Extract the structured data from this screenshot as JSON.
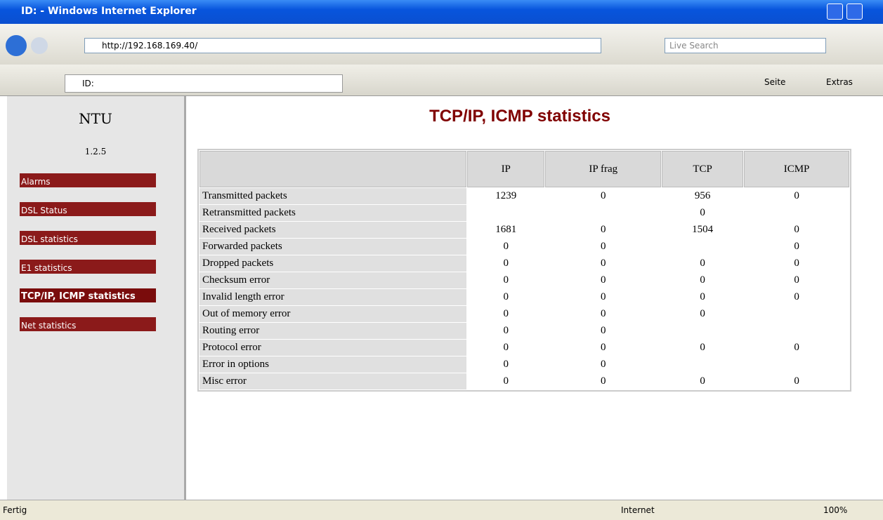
{
  "window": {
    "title": "ID: - Windows Internet Explorer"
  },
  "toolbar": {
    "url": "http://192.168.169.40/",
    "search": "Live Search",
    "tab": "ID:",
    "page": "Seite",
    "extras": "Extras"
  },
  "sidebar": {
    "title": "NTU",
    "version": "1.2.5",
    "nav": [
      "Alarms",
      "DSL Status",
      "DSL statistics",
      "E1 statistics",
      "TCP/IP, ICMP statistics",
      "Net statistics"
    ],
    "active": 4
  },
  "main": {
    "title": "TCP/IP, ICMP statistics"
  },
  "table": {
    "headers": [
      "IP",
      "IP frag",
      "TCP",
      "ICMP"
    ],
    "rows": [
      {
        "label": "Transmitted packets",
        "cells": [
          1239,
          0,
          956,
          0
        ]
      },
      {
        "label": "Retransmitted packets",
        "cells": [
          null,
          null,
          0,
          null
        ]
      },
      {
        "label": "Received packets",
        "cells": [
          1681,
          0,
          1504,
          0
        ]
      },
      {
        "label": "Forwarded packets",
        "cells": [
          0,
          0,
          null,
          0
        ]
      },
      {
        "label": "Dropped packets",
        "cells": [
          0,
          0,
          0,
          0
        ]
      },
      {
        "label": "Checksum error",
        "cells": [
          0,
          0,
          0,
          0
        ]
      },
      {
        "label": "Invalid length error",
        "cells": [
          0,
          0,
          0,
          0
        ]
      },
      {
        "label": "Out of memory error",
        "cells": [
          0,
          0,
          0,
          null
        ]
      },
      {
        "label": "Routing error",
        "cells": [
          0,
          0,
          null,
          null
        ]
      },
      {
        "label": "Protocol error",
        "cells": [
          0,
          0,
          0,
          0
        ]
      },
      {
        "label": "Error in options",
        "cells": [
          0,
          0,
          null,
          null
        ]
      },
      {
        "label": "Misc error",
        "cells": [
          0,
          0,
          0,
          0
        ]
      }
    ]
  },
  "status": {
    "text": "Fertig",
    "zone": "Internet",
    "zoom": "100%"
  }
}
